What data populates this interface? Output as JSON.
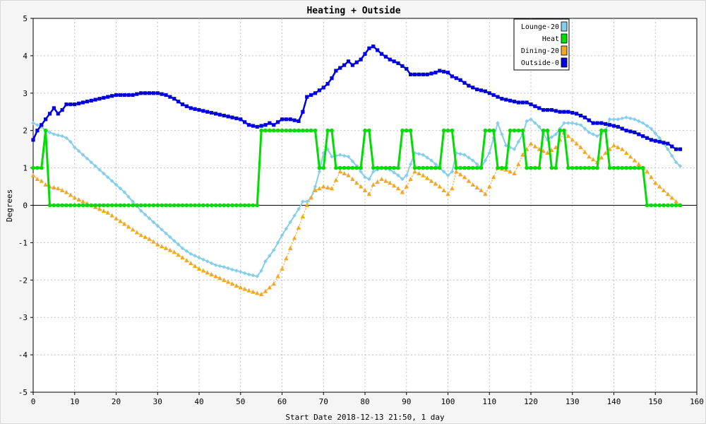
{
  "chart_data": {
    "type": "line",
    "title": "Heating + Outside",
    "xlabel": "Start Date 2018-12-13 21:50, 1 day",
    "ylabel": "Degrees",
    "xlim": [
      0,
      160
    ],
    "ylim": [
      -5,
      5
    ],
    "x_ticks": [
      0,
      10,
      20,
      30,
      40,
      50,
      60,
      70,
      80,
      90,
      100,
      110,
      120,
      130,
      140,
      150,
      160
    ],
    "y_ticks": [
      -5,
      -4,
      -3,
      -2,
      -1,
      0,
      1,
      2,
      3,
      4,
      5
    ],
    "grid": true,
    "legend_position": "top-right",
    "series": [
      {
        "name": "Lounge-20",
        "color": "#87ceeb",
        "marker": "diamond",
        "points": [
          [
            0,
            2.2
          ],
          [
            1,
            2.15
          ],
          [
            2,
            2.1
          ],
          [
            3,
            2.0
          ],
          [
            4,
            1.95
          ],
          [
            5,
            1.9
          ],
          [
            7,
            1.85
          ],
          [
            8,
            1.8
          ],
          [
            9,
            1.7
          ],
          [
            10,
            1.55
          ],
          [
            12,
            1.35
          ],
          [
            14,
            1.15
          ],
          [
            16,
            0.95
          ],
          [
            18,
            0.75
          ],
          [
            20,
            0.55
          ],
          [
            22,
            0.35
          ],
          [
            24,
            0.1
          ],
          [
            26,
            -0.15
          ],
          [
            28,
            -0.35
          ],
          [
            30,
            -0.55
          ],
          [
            32,
            -0.75
          ],
          [
            34,
            -0.95
          ],
          [
            36,
            -1.15
          ],
          [
            38,
            -1.3
          ],
          [
            40,
            -1.4
          ],
          [
            42,
            -1.5
          ],
          [
            44,
            -1.6
          ],
          [
            46,
            -1.65
          ],
          [
            48,
            -1.72
          ],
          [
            50,
            -1.78
          ],
          [
            52,
            -1.85
          ],
          [
            54,
            -1.9
          ],
          [
            55,
            -1.75
          ],
          [
            56,
            -1.5
          ],
          [
            58,
            -1.2
          ],
          [
            60,
            -0.8
          ],
          [
            62,
            -0.45
          ],
          [
            64,
            -0.1
          ],
          [
            65,
            0.1
          ],
          [
            66,
            0.1
          ],
          [
            67,
            0.2
          ],
          [
            68,
            0.5
          ],
          [
            69,
            0.9
          ],
          [
            70,
            1.4
          ],
          [
            71,
            1.5
          ],
          [
            72,
            1.3
          ],
          [
            74,
            1.35
          ],
          [
            76,
            1.3
          ],
          [
            78,
            1.05
          ],
          [
            80,
            0.75
          ],
          [
            81,
            0.7
          ],
          [
            82,
            0.9
          ],
          [
            84,
            1.0
          ],
          [
            86,
            0.95
          ],
          [
            88,
            0.8
          ],
          [
            89,
            0.7
          ],
          [
            90,
            0.8
          ],
          [
            92,
            1.4
          ],
          [
            94,
            1.35
          ],
          [
            96,
            1.2
          ],
          [
            98,
            1.0
          ],
          [
            100,
            0.8
          ],
          [
            101,
            0.9
          ],
          [
            102,
            1.4
          ],
          [
            104,
            1.35
          ],
          [
            106,
            1.2
          ],
          [
            108,
            1.0
          ],
          [
            110,
            1.4
          ],
          [
            112,
            2.2
          ],
          [
            114,
            1.6
          ],
          [
            116,
            1.5
          ],
          [
            118,
            1.9
          ],
          [
            119,
            2.25
          ],
          [
            120,
            2.3
          ],
          [
            122,
            2.1
          ],
          [
            124,
            1.75
          ],
          [
            126,
            1.9
          ],
          [
            128,
            2.2
          ],
          [
            130,
            2.2
          ],
          [
            132,
            2.15
          ],
          [
            134,
            1.95
          ],
          [
            136,
            1.85
          ],
          [
            138,
            2.0
          ],
          [
            139,
            2.3
          ],
          [
            141,
            2.3
          ],
          [
            143,
            2.35
          ],
          [
            145,
            2.3
          ],
          [
            147,
            2.2
          ],
          [
            149,
            2.05
          ],
          [
            151,
            1.8
          ],
          [
            153,
            1.5
          ],
          [
            155,
            1.15
          ],
          [
            156,
            1.05
          ]
        ]
      },
      {
        "name": "Heat",
        "color": "#00dd00",
        "marker": "circle",
        "points": [
          [
            0,
            1
          ],
          [
            1,
            1
          ],
          [
            2,
            1
          ],
          [
            3,
            2
          ],
          [
            4,
            0
          ],
          [
            10,
            0
          ],
          [
            20,
            0
          ],
          [
            30,
            0
          ],
          [
            40,
            0
          ],
          [
            50,
            0
          ],
          [
            54,
            0
          ],
          [
            55,
            2
          ],
          [
            60,
            2
          ],
          [
            68,
            2
          ],
          [
            69,
            1
          ],
          [
            70,
            1
          ],
          [
            71,
            2
          ],
          [
            72,
            2
          ],
          [
            73,
            1
          ],
          [
            79,
            1
          ],
          [
            80,
            2
          ],
          [
            81,
            2
          ],
          [
            82,
            1
          ],
          [
            88,
            1
          ],
          [
            89,
            2
          ],
          [
            91,
            2
          ],
          [
            92,
            1
          ],
          [
            98,
            1
          ],
          [
            99,
            2
          ],
          [
            101,
            2
          ],
          [
            102,
            1
          ],
          [
            108,
            1
          ],
          [
            109,
            2
          ],
          [
            111,
            2
          ],
          [
            112,
            1
          ],
          [
            114,
            1
          ],
          [
            115,
            2
          ],
          [
            118,
            2
          ],
          [
            119,
            1
          ],
          [
            122,
            1
          ],
          [
            123,
            2
          ],
          [
            124,
            2
          ],
          [
            125,
            1
          ],
          [
            126,
            1
          ],
          [
            127,
            2
          ],
          [
            128,
            2
          ],
          [
            129,
            1
          ],
          [
            136,
            1
          ],
          [
            137,
            2
          ],
          [
            138,
            2
          ],
          [
            139,
            1
          ],
          [
            147,
            1
          ],
          [
            148,
            0
          ],
          [
            156,
            0
          ]
        ]
      },
      {
        "name": "Dining-20",
        "color": "#f5a623",
        "marker": "triangle",
        "points": [
          [
            0,
            0.8
          ],
          [
            1,
            0.7
          ],
          [
            2,
            0.65
          ],
          [
            3,
            0.55
          ],
          [
            4,
            0.5
          ],
          [
            6,
            0.45
          ],
          [
            8,
            0.35
          ],
          [
            10,
            0.2
          ],
          [
            12,
            0.1
          ],
          [
            14,
            0.0
          ],
          [
            16,
            -0.1
          ],
          [
            18,
            -0.2
          ],
          [
            20,
            -0.35
          ],
          [
            22,
            -0.5
          ],
          [
            24,
            -0.65
          ],
          [
            26,
            -0.8
          ],
          [
            28,
            -0.9
          ],
          [
            30,
            -1.05
          ],
          [
            32,
            -1.15
          ],
          [
            34,
            -1.25
          ],
          [
            36,
            -1.4
          ],
          [
            38,
            -1.55
          ],
          [
            40,
            -1.7
          ],
          [
            42,
            -1.8
          ],
          [
            44,
            -1.9
          ],
          [
            46,
            -2.0
          ],
          [
            48,
            -2.1
          ],
          [
            50,
            -2.2
          ],
          [
            52,
            -2.28
          ],
          [
            54,
            -2.35
          ],
          [
            55,
            -2.38
          ],
          [
            56,
            -2.3
          ],
          [
            58,
            -2.1
          ],
          [
            60,
            -1.7
          ],
          [
            62,
            -1.15
          ],
          [
            64,
            -0.6
          ],
          [
            66,
            0.0
          ],
          [
            67,
            0.2
          ],
          [
            68,
            0.4
          ],
          [
            70,
            0.5
          ],
          [
            72,
            0.45
          ],
          [
            74,
            0.9
          ],
          [
            76,
            0.8
          ],
          [
            78,
            0.6
          ],
          [
            80,
            0.4
          ],
          [
            81,
            0.3
          ],
          [
            82,
            0.55
          ],
          [
            84,
            0.7
          ],
          [
            86,
            0.6
          ],
          [
            88,
            0.45
          ],
          [
            89,
            0.35
          ],
          [
            90,
            0.5
          ],
          [
            92,
            0.9
          ],
          [
            94,
            0.8
          ],
          [
            96,
            0.65
          ],
          [
            98,
            0.5
          ],
          [
            100,
            0.3
          ],
          [
            101,
            0.45
          ],
          [
            102,
            0.9
          ],
          [
            104,
            0.75
          ],
          [
            106,
            0.55
          ],
          [
            108,
            0.4
          ],
          [
            109,
            0.3
          ],
          [
            110,
            0.5
          ],
          [
            112,
            1.0
          ],
          [
            114,
            0.95
          ],
          [
            116,
            0.85
          ],
          [
            118,
            1.35
          ],
          [
            120,
            1.65
          ],
          [
            122,
            1.5
          ],
          [
            124,
            1.4
          ],
          [
            126,
            1.55
          ],
          [
            128,
            1.95
          ],
          [
            130,
            1.75
          ],
          [
            132,
            1.55
          ],
          [
            134,
            1.3
          ],
          [
            136,
            1.15
          ],
          [
            138,
            1.4
          ],
          [
            140,
            1.6
          ],
          [
            142,
            1.5
          ],
          [
            144,
            1.3
          ],
          [
            146,
            1.1
          ],
          [
            148,
            0.9
          ],
          [
            150,
            0.6
          ],
          [
            152,
            0.4
          ],
          [
            154,
            0.2
          ],
          [
            156,
            0.0
          ]
        ]
      },
      {
        "name": "Outside-0",
        "color": "#0000dd",
        "marker": "square",
        "points": [
          [
            0,
            1.75
          ],
          [
            1,
            2.0
          ],
          [
            2,
            2.15
          ],
          [
            3,
            2.3
          ],
          [
            4,
            2.45
          ],
          [
            5,
            2.6
          ],
          [
            6,
            2.45
          ],
          [
            7,
            2.55
          ],
          [
            8,
            2.7
          ],
          [
            10,
            2.7
          ],
          [
            12,
            2.75
          ],
          [
            14,
            2.8
          ],
          [
            16,
            2.85
          ],
          [
            18,
            2.9
          ],
          [
            20,
            2.95
          ],
          [
            22,
            2.95
          ],
          [
            24,
            2.95
          ],
          [
            26,
            3.0
          ],
          [
            28,
            3.0
          ],
          [
            30,
            3.0
          ],
          [
            32,
            2.95
          ],
          [
            34,
            2.85
          ],
          [
            36,
            2.7
          ],
          [
            38,
            2.6
          ],
          [
            40,
            2.55
          ],
          [
            42,
            2.5
          ],
          [
            44,
            2.45
          ],
          [
            46,
            2.4
          ],
          [
            48,
            2.35
          ],
          [
            50,
            2.3
          ],
          [
            52,
            2.15
          ],
          [
            54,
            2.1
          ],
          [
            56,
            2.15
          ],
          [
            57,
            2.2
          ],
          [
            58,
            2.15
          ],
          [
            60,
            2.3
          ],
          [
            62,
            2.3
          ],
          [
            64,
            2.25
          ],
          [
            65,
            2.5
          ],
          [
            66,
            2.9
          ],
          [
            68,
            3.0
          ],
          [
            70,
            3.15
          ],
          [
            71,
            3.25
          ],
          [
            72,
            3.4
          ],
          [
            73,
            3.6
          ],
          [
            75,
            3.75
          ],
          [
            76,
            3.85
          ],
          [
            77,
            3.75
          ],
          [
            79,
            3.9
          ],
          [
            81,
            4.2
          ],
          [
            82,
            4.25
          ],
          [
            84,
            4.05
          ],
          [
            86,
            3.9
          ],
          [
            88,
            3.8
          ],
          [
            90,
            3.65
          ],
          [
            91,
            3.5
          ],
          [
            93,
            3.5
          ],
          [
            95,
            3.5
          ],
          [
            97,
            3.55
          ],
          [
            98,
            3.6
          ],
          [
            100,
            3.55
          ],
          [
            101,
            3.45
          ],
          [
            103,
            3.35
          ],
          [
            105,
            3.2
          ],
          [
            107,
            3.1
          ],
          [
            109,
            3.05
          ],
          [
            111,
            2.95
          ],
          [
            113,
            2.85
          ],
          [
            115,
            2.8
          ],
          [
            117,
            2.75
          ],
          [
            119,
            2.75
          ],
          [
            121,
            2.65
          ],
          [
            123,
            2.55
          ],
          [
            125,
            2.55
          ],
          [
            127,
            2.5
          ],
          [
            129,
            2.5
          ],
          [
            131,
            2.45
          ],
          [
            133,
            2.35
          ],
          [
            135,
            2.2
          ],
          [
            137,
            2.2
          ],
          [
            139,
            2.15
          ],
          [
            141,
            2.1
          ],
          [
            143,
            2.0
          ],
          [
            145,
            1.95
          ],
          [
            147,
            1.85
          ],
          [
            149,
            1.75
          ],
          [
            151,
            1.7
          ],
          [
            153,
            1.65
          ],
          [
            155,
            1.5
          ],
          [
            156,
            1.5
          ]
        ]
      }
    ]
  }
}
